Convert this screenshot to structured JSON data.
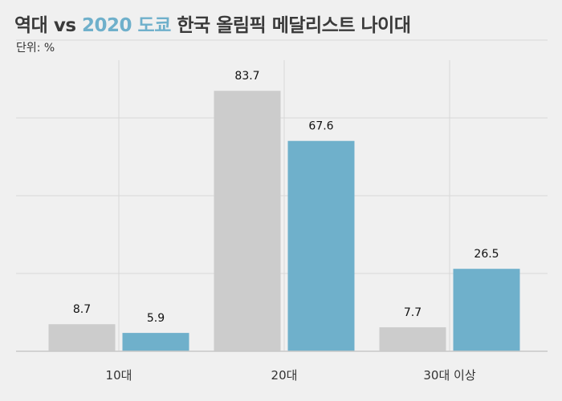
{
  "title": {
    "part1": "역대 vs ",
    "accent": "2020 도쿄",
    "part2": " 한국 올림픽 메달리스트 나이대"
  },
  "subtitle": "단위: %",
  "colors": {
    "background": "#f0f0f0",
    "historical": "#cccccc",
    "tokyo": "#6fb0cb",
    "grid": "#d8d8d8",
    "axis": "#c8c8c8"
  },
  "chart_data": {
    "type": "bar",
    "title": "역대 vs 2020 도쿄 한국 올림픽 메달리스트 나이대",
    "subtitle": "단위: %",
    "xlabel": "",
    "ylabel": "",
    "categories": [
      "10대",
      "20대",
      "30대 이상"
    ],
    "series": [
      {
        "name": "역대",
        "values": [
          8.7,
          83.7,
          7.7
        ],
        "labels": [
          "8.7",
          "83.7",
          "7.7"
        ]
      },
      {
        "name": "2020 도쿄",
        "values": [
          5.9,
          67.6,
          26.5
        ],
        "labels": [
          "5.9",
          "67.6",
          "26.5"
        ]
      }
    ],
    "ylim": [
      0,
      100
    ],
    "yticks": [
      0,
      25,
      50,
      75,
      100
    ],
    "grid": true,
    "legend": "none"
  }
}
